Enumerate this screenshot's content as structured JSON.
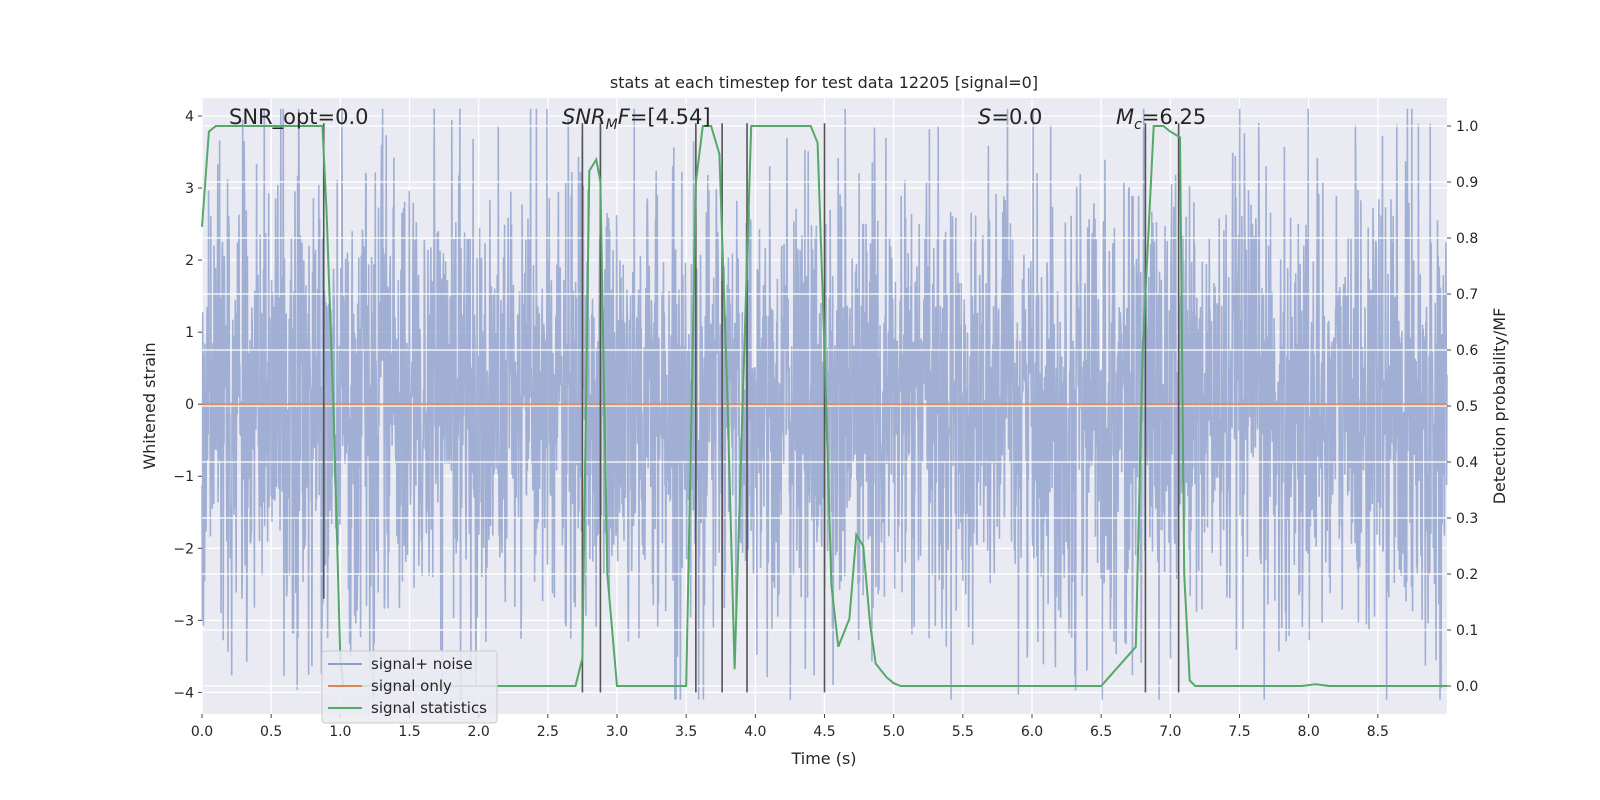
{
  "chart_data": {
    "type": "line",
    "title": "stats at each timestep for test data 12205 [signal=0]",
    "xlabel": "Time (s)",
    "ylabel_left": "Whitened strain",
    "ylabel_right": "Detection probability/MF",
    "xlim": [
      0,
      9.0
    ],
    "ylim_left": [
      -4.3,
      4.25
    ],
    "ylim_right": [
      -0.05,
      1.05
    ],
    "xticks": [
      0.0,
      0.5,
      1.0,
      1.5,
      2.0,
      2.5,
      3.0,
      3.5,
      4.0,
      4.5,
      5.0,
      5.5,
      6.0,
      6.5,
      7.0,
      7.5,
      8.0,
      8.5
    ],
    "xtick_labels": [
      "0.0",
      "0.5",
      "1.0",
      "1.5",
      "2.0",
      "2.5",
      "3.0",
      "3.5",
      "4.0",
      "4.5",
      "5.0",
      "5.5",
      "6.0",
      "6.5",
      "7.0",
      "7.5",
      "8.0",
      "8.5"
    ],
    "yticks_left": [
      4,
      3,
      2,
      1,
      0,
      -1,
      -2,
      -3,
      -4
    ],
    "yticks_left_labels": [
      "4",
      "3",
      "2",
      "1",
      "0",
      "−1",
      "−2",
      "−3",
      "−4"
    ],
    "yticks_right": [
      1.0,
      0.9,
      0.8,
      0.7,
      0.6,
      0.5,
      0.4,
      0.3,
      0.2,
      0.1,
      0.0
    ],
    "yticks_right_labels": [
      "1.0",
      "0.9",
      "0.8",
      "0.7",
      "0.6",
      "0.5",
      "0.4",
      "0.3",
      "0.2",
      "0.1",
      "0.0"
    ],
    "grid": true,
    "legend_placement": "lower left",
    "series": [
      {
        "name": "signal+ noise",
        "color": "#8da0cb",
        "axis": "left",
        "noise_amplitude": 1.55,
        "description_values": "dense noise, roughly within −4 to 4"
      },
      {
        "name": "signal only",
        "color": "#dd8452",
        "axis": "left",
        "x": [
          0.0,
          9.0
        ],
        "y": [
          0.0,
          0.0
        ]
      },
      {
        "name": "signal statistics",
        "color": "#55a868",
        "axis": "right",
        "x": [
          0.0,
          0.05,
          0.1,
          0.4,
          0.7,
          0.87,
          0.9,
          0.95,
          1.0,
          1.02,
          2.7,
          2.75,
          2.8,
          2.85,
          2.88,
          2.93,
          3.0,
          3.5,
          3.57,
          3.62,
          3.68,
          3.74,
          3.8,
          3.85,
          3.92,
          3.97,
          4.0,
          4.4,
          4.45,
          4.5,
          4.55,
          4.6,
          4.68,
          4.73,
          4.78,
          4.83,
          4.87,
          4.95,
          5.0,
          5.05,
          5.1,
          6.5,
          6.75,
          6.8,
          6.88,
          6.95,
          7.0,
          7.07,
          7.1,
          7.14,
          7.18,
          7.5,
          7.95,
          8.05,
          8.15,
          9.0
        ],
        "y": [
          0.82,
          0.99,
          1.0,
          1.0,
          1.0,
          1.0,
          0.85,
          0.5,
          0.05,
          0.0,
          0.0,
          0.05,
          0.92,
          0.94,
          0.9,
          0.2,
          0.0,
          0.0,
          0.9,
          1.0,
          1.0,
          0.95,
          0.5,
          0.03,
          0.6,
          1.0,
          1.0,
          1.0,
          0.97,
          0.6,
          0.18,
          0.07,
          0.12,
          0.27,
          0.25,
          0.11,
          0.04,
          0.015,
          0.005,
          0.0,
          0.0,
          0.0,
          0.07,
          0.6,
          1.0,
          1.0,
          0.99,
          0.98,
          0.2,
          0.01,
          0.0,
          0.0,
          0.0,
          0.003,
          0.0,
          0.0
        ]
      }
    ],
    "vlines": [
      {
        "x": 0.88,
        "ymin": -2.7,
        "ymax": 3.9
      },
      {
        "x": 2.75,
        "ymin": -4.0,
        "ymax": 3.9
      },
      {
        "x": 2.88,
        "ymin": -4.0,
        "ymax": 3.9
      },
      {
        "x": 3.57,
        "ymin": -4.0,
        "ymax": 3.9
      },
      {
        "x": 3.76,
        "ymin": -4.0,
        "ymax": 3.9
      },
      {
        "x": 3.94,
        "ymin": -4.0,
        "ymax": 3.9
      },
      {
        "x": 4.5,
        "ymin": -4.0,
        "ymax": 3.9
      },
      {
        "x": 6.82,
        "ymin": -4.0,
        "ymax": 3.9
      },
      {
        "x": 7.06,
        "ymin": -4.0,
        "ymax": 3.9
      }
    ],
    "annotations": [
      {
        "text": "SNR_opt=0.0",
        "x": 0.2,
        "y": 3.98
      },
      {
        "text": "SNR_MF=[4.54]",
        "x": 2.6,
        "y": 3.98
      },
      {
        "text": "S=0.0",
        "x": 5.6,
        "y": 3.98
      },
      {
        "text": "M_c=6.25",
        "x": 6.6,
        "y": 3.98
      }
    ]
  }
}
